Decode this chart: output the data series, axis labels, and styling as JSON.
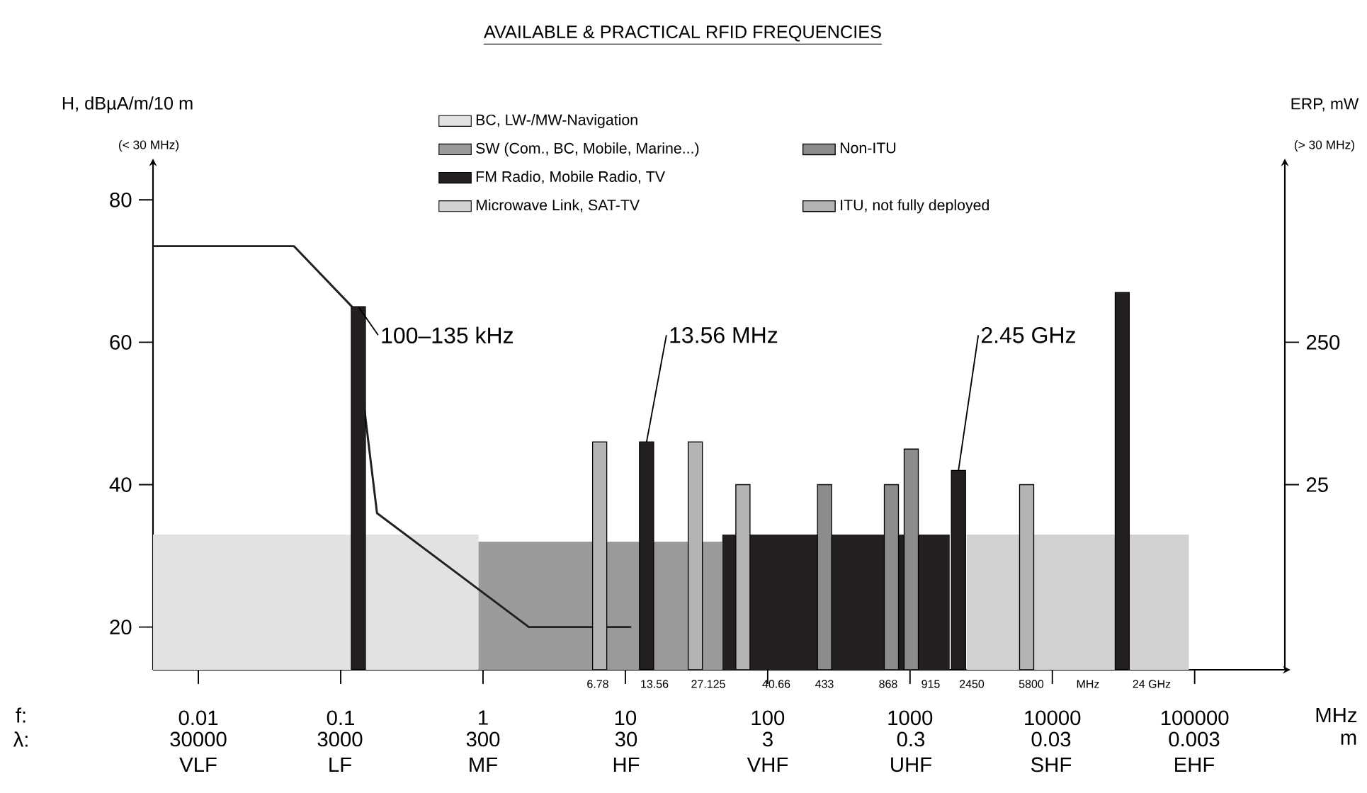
{
  "chart_data": {
    "type": "bar",
    "title": "AVAILABLE & PRACTICAL RFID FREQUENCIES",
    "xlabel": "MHz",
    "ylabel": "H, dBµA/m/10 m",
    "y2label": "ERP, mW",
    "log": "x",
    "xlim": [
      0.0048,
      430000
    ],
    "xticks": [
      0.01,
      0.1,
      1,
      10,
      100,
      1000,
      10000,
      100000
    ],
    "ylim": [
      14,
      85
    ],
    "yticks": [
      20,
      40,
      60,
      80
    ],
    "y2lim": [
      -267.5,
      531.25
    ],
    "y2ticks": [
      25,
      250
    ],
    "legend": "top",
    "series": [
      {
        "name": "BC, LW-/MW-Navigation",
        "type": "area",
        "color": "#e2e2e2",
        "x": [
          0.0048,
          0.93
        ],
        "values": [
          33,
          33
        ]
      },
      {
        "name": "SW (Com., BC, Mobile, Marine...)",
        "type": "area",
        "color": "#9a9a9a",
        "x": [
          0.93,
          48
        ],
        "values": [
          32,
          32
        ]
      },
      {
        "name": "FM Radio, Mobile Radio, TV",
        "type": "area",
        "color": "#231f20",
        "x": [
          48,
          1900
        ],
        "values": [
          33,
          33
        ]
      },
      {
        "name": "Microwave Link, SAT-TV",
        "type": "area",
        "color": "#d2d2d2",
        "x": [
          2500,
          91000
        ],
        "values": [
          33,
          33
        ]
      },
      {
        "type": "line",
        "color": "#231f20",
        "x": [
          0.0048,
          0.047,
          0.12,
          0.18,
          2.1,
          11
        ],
        "values": [
          73.5,
          73.5,
          65,
          36,
          20,
          20
        ]
      },
      {
        "color": "#231f20",
        "x": [
          0.133,
          14.1,
          2190,
          31000
        ],
        "values": [
          65,
          46,
          42,
          67
        ]
      },
      {
        "name": "Non-ITU",
        "color": "#8c8c8c",
        "x": [
          251,
          740,
          1020
        ],
        "values": [
          40,
          40,
          45
        ]
      },
      {
        "name": "ITU, not fully deployed",
        "color": "#b4b4b4",
        "x": [
          6.6,
          31,
          67,
          6600
        ],
        "values": [
          46,
          46,
          40,
          40
        ]
      }
    ],
    "annotations": [
      "(< 30 MHz)",
      "(> 30 MHz)",
      "f:",
      "λ:",
      "6.78",
      "13.56",
      "27.125",
      "40.66",
      "433",
      "868",
      "915",
      "2450",
      "5800",
      "MHz",
      "24 GHz",
      "VLF",
      "LF",
      "MF",
      "HF",
      "VHF",
      "UHF",
      "SHF",
      "EHF",
      "30000",
      "3000",
      "300",
      "30",
      "3",
      "0.3",
      "0.03",
      "0.003",
      "m",
      {
        "text": "100–135 kHz",
        "x": 0.133,
        "y": 65
      },
      {
        "text": "13.56 MHz",
        "x": 14.1,
        "y": 46
      },
      {
        "text": "2.45 GHz",
        "x": 2190,
        "y": 42
      }
    ]
  }
}
